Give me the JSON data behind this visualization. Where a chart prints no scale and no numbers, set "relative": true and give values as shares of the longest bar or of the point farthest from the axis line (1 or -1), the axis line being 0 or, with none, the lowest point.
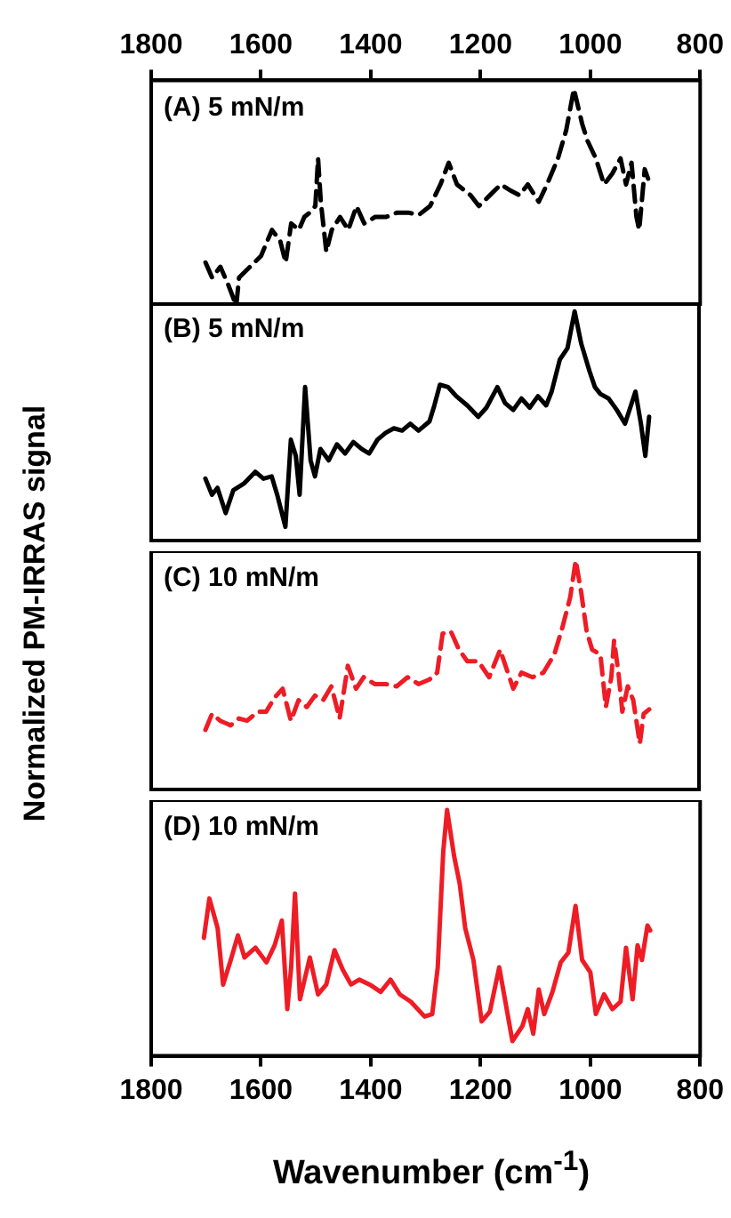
{
  "chart_data": [
    {
      "type": "line",
      "relative": true,
      "ylabel": "Normalized PM-IRRAS signal",
      "annotations": [
        "(A) 5 mN/m"
      ],
      "xlim": [
        1800,
        800
      ],
      "xticks": [
        1800,
        1600,
        1400,
        1200,
        1000,
        800
      ],
      "tick_labels": "x",
      "grid": false,
      "series": [
        {
          "color": "#000000",
          "line_style": "dashed",
          "x": [
            1701,
            1689,
            1674,
            1660,
            1645,
            1640,
            1620,
            1600,
            1580,
            1565,
            1555,
            1545,
            1531,
            1521,
            1511,
            1501,
            1496,
            1491,
            1481,
            1471,
            1456,
            1441,
            1426,
            1412,
            1392,
            1372,
            1352,
            1332,
            1312,
            1292,
            1273,
            1258,
            1243,
            1218,
            1203,
            1183,
            1163,
            1144,
            1129,
            1114,
            1094,
            1079,
            1059,
            1044,
            1030,
            1015,
            1005,
            990,
            975,
            960,
            945,
            935,
            925,
            916,
            911,
            901,
            891
          ],
          "values": [
            0.2,
            0.13,
            0.18,
            0.1,
            0,
            0.13,
            0.18,
            0.23,
            0.35,
            0.3,
            0.2,
            0.38,
            0.35,
            0.41,
            0.43,
            0.46,
            0.68,
            0.48,
            0.25,
            0.35,
            0.41,
            0.35,
            0.46,
            0.38,
            0.41,
            0.41,
            0.43,
            0.43,
            0.42,
            0.46,
            0.56,
            0.66,
            0.56,
            0.51,
            0.46,
            0.51,
            0.56,
            0.53,
            0.51,
            0.56,
            0.48,
            0.56,
            0.68,
            0.81,
            1,
            0.84,
            0.76,
            0.68,
            0.56,
            0.61,
            0.68,
            0.56,
            0.66,
            0.41,
            0.35,
            0.63,
            0.56
          ]
        }
      ]
    },
    {
      "type": "line",
      "relative": true,
      "annotations": [
        "(B) 5 mN/m"
      ],
      "xlim": [
        1800,
        800
      ],
      "xticks": [
        1800,
        1600,
        1400,
        1200,
        1000,
        800
      ],
      "tick_labels": false,
      "grid": false,
      "series": [
        {
          "color": "#000000",
          "line_style": "solid",
          "x": [
            1701,
            1689,
            1679,
            1664,
            1650,
            1630,
            1610,
            1595,
            1580,
            1570,
            1555,
            1545,
            1536,
            1529,
            1519,
            1509,
            1501,
            1491,
            1476,
            1461,
            1446,
            1431,
            1416,
            1402,
            1387,
            1372,
            1357,
            1342,
            1327,
            1312,
            1292,
            1283,
            1273,
            1258,
            1243,
            1223,
            1203,
            1188,
            1168,
            1154,
            1139,
            1124,
            1109,
            1094,
            1079,
            1069,
            1054,
            1040,
            1027,
            1015,
            1000,
            990,
            980,
            965,
            950,
            935,
            916,
            906,
            898,
            891
          ],
          "values": [
            0.27,
            0.2,
            0.23,
            0.12,
            0.22,
            0.25,
            0.3,
            0.27,
            0.28,
            0.2,
            0.06,
            0.44,
            0.37,
            0.2,
            0.67,
            0.35,
            0.28,
            0.4,
            0.35,
            0.42,
            0.38,
            0.43,
            0.4,
            0.38,
            0.44,
            0.47,
            0.49,
            0.48,
            0.51,
            0.48,
            0.52,
            0.59,
            0.68,
            0.67,
            0.63,
            0.59,
            0.54,
            0.58,
            0.67,
            0.6,
            0.57,
            0.62,
            0.58,
            0.63,
            0.59,
            0.65,
            0.79,
            0.84,
            1,
            0.86,
            0.74,
            0.67,
            0.64,
            0.62,
            0.57,
            0.51,
            0.65,
            0.51,
            0.37,
            0.54
          ]
        }
      ]
    },
    {
      "type": "line",
      "relative": true,
      "annotations": [
        "(C) 10 mN/m"
      ],
      "xlim": [
        1800,
        800
      ],
      "xticks": [
        1800,
        1600,
        1400,
        1200,
        1000,
        800
      ],
      "tick_labels": false,
      "grid": false,
      "series": [
        {
          "color": "#ee1c25",
          "line_style": "dashed",
          "x": [
            1701,
            1689,
            1674,
            1655,
            1640,
            1625,
            1605,
            1590,
            1575,
            1560,
            1545,
            1531,
            1516,
            1501,
            1486,
            1471,
            1456,
            1441,
            1426,
            1412,
            1392,
            1372,
            1352,
            1332,
            1312,
            1292,
            1278,
            1268,
            1253,
            1238,
            1223,
            1203,
            1183,
            1163,
            1149,
            1139,
            1124,
            1104,
            1084,
            1064,
            1049,
            1035,
            1025,
            1015,
            1005,
            995,
            980,
            970,
            960,
            955,
            947,
            940,
            930,
            920,
            908,
            901,
            891
          ],
          "values": [
            0.26,
            0.33,
            0.3,
            0.28,
            0.31,
            0.3,
            0.34,
            0.34,
            0.4,
            0.44,
            0.3,
            0.39,
            0.36,
            0.41,
            0.39,
            0.45,
            0.31,
            0.54,
            0.44,
            0.49,
            0.46,
            0.46,
            0.45,
            0.49,
            0.46,
            0.48,
            0.51,
            0.68,
            0.69,
            0.61,
            0.56,
            0.56,
            0.49,
            0.61,
            0.51,
            0.44,
            0.51,
            0.49,
            0.51,
            0.59,
            0.71,
            0.84,
            1,
            0.86,
            0.69,
            0.61,
            0.59,
            0.36,
            0.49,
            0.65,
            0.51,
            0.34,
            0.45,
            0.39,
            0.2,
            0.33,
            0.35
          ]
        }
      ]
    },
    {
      "type": "line",
      "relative": true,
      "annotations": [
        "(D) 10 mN/m"
      ],
      "xlim": [
        1800,
        800
      ],
      "xticks": [
        1800,
        1600,
        1400,
        1200,
        1000,
        800
      ],
      "xlabel": "Wavenumber (cm$^{-1}$)",
      "grid": false,
      "series": [
        {
          "color": "#ee1c25",
          "line_style": "solid",
          "x": [
            1704,
            1694,
            1679,
            1669,
            1655,
            1642,
            1630,
            1610,
            1590,
            1575,
            1562,
            1552,
            1545,
            1538,
            1529,
            1511,
            1496,
            1481,
            1466,
            1451,
            1436,
            1421,
            1402,
            1382,
            1364,
            1347,
            1327,
            1302,
            1288,
            1278,
            1268,
            1261,
            1248,
            1238,
            1228,
            1213,
            1198,
            1183,
            1166,
            1154,
            1142,
            1124,
            1114,
            1104,
            1094,
            1084,
            1069,
            1054,
            1040,
            1027,
            1015,
            1000,
            990,
            975,
            960,
            945,
            935,
            923,
            914,
            906,
            896,
            891
          ],
          "values": [
            0.48,
            0.64,
            0.52,
            0.29,
            0.39,
            0.49,
            0.4,
            0.44,
            0.38,
            0.45,
            0.55,
            0.19,
            0.36,
            0.66,
            0.23,
            0.4,
            0.25,
            0.29,
            0.43,
            0.35,
            0.29,
            0.31,
            0.29,
            0.26,
            0.31,
            0.25,
            0.22,
            0.16,
            0.17,
            0.36,
            0.83,
            1,
            0.81,
            0.7,
            0.52,
            0.39,
            0.14,
            0.18,
            0.36,
            0.21,
            0.06,
            0.12,
            0.19,
            0.09,
            0.27,
            0.17,
            0.26,
            0.38,
            0.42,
            0.61,
            0.39,
            0.34,
            0.17,
            0.25,
            0.19,
            0.22,
            0.44,
            0.23,
            0.45,
            0.39,
            0.53,
            0.51
          ]
        }
      ]
    }
  ]
}
